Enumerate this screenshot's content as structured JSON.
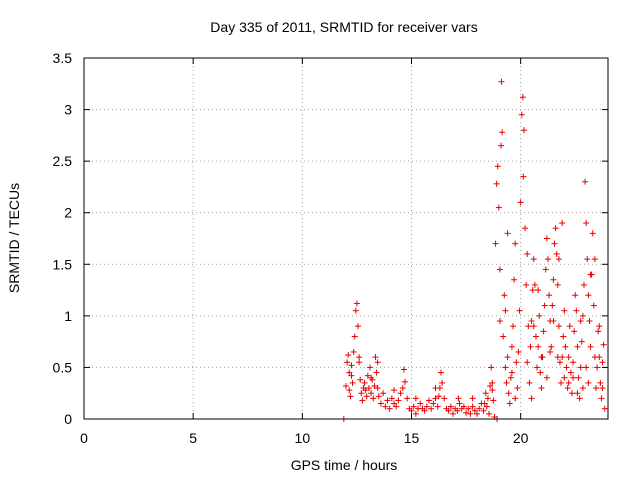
{
  "chart_data": {
    "type": "scatter",
    "title": "Day 335 of 2011, SRMTID for receiver vars",
    "xlabel": "GPS time / hours",
    "ylabel": "SRMTID / TECUs",
    "xlim": [
      0,
      24
    ],
    "ylim": [
      0,
      3.5
    ],
    "x_ticks": [
      "0",
      "5",
      "10",
      "15",
      "20"
    ],
    "y_ticks": [
      "0",
      "0.5",
      "1",
      "1.5",
      "2",
      "2.5",
      "3",
      "3.5"
    ],
    "grid": true,
    "series": [
      {
        "name": "SRMTID",
        "color": "#e80000",
        "marker": "plus",
        "points": [
          [
            11.9,
            0.0
          ],
          [
            12.0,
            0.32
          ],
          [
            12.05,
            0.55
          ],
          [
            12.1,
            0.62
          ],
          [
            12.15,
            0.45
          ],
          [
            12.2,
            0.22
          ],
          [
            12.25,
            0.52
          ],
          [
            12.3,
            0.35
          ],
          [
            12.35,
            0.65
          ],
          [
            12.4,
            0.8
          ],
          [
            12.45,
            1.05
          ],
          [
            12.5,
            1.12
          ],
          [
            12.55,
            0.9
          ],
          [
            12.6,
            0.6
          ],
          [
            12.65,
            0.38
          ],
          [
            12.7,
            0.25
          ],
          [
            12.75,
            0.18
          ],
          [
            12.8,
            0.3
          ],
          [
            12.85,
            0.35
          ],
          [
            12.9,
            0.28
          ],
          [
            12.95,
            0.22
          ],
          [
            13.0,
            0.42
          ],
          [
            13.05,
            0.3
          ],
          [
            13.1,
            0.5
          ],
          [
            13.15,
            0.25
          ],
          [
            13.2,
            0.38
          ],
          [
            13.25,
            0.2
          ],
          [
            13.3,
            0.32
          ],
          [
            13.35,
            0.6
          ],
          [
            13.4,
            0.45
          ],
          [
            13.45,
            0.3
          ],
          [
            13.5,
            0.22
          ],
          [
            13.6,
            0.15
          ],
          [
            13.7,
            0.25
          ],
          [
            13.8,
            0.12
          ],
          [
            13.9,
            0.18
          ],
          [
            14.0,
            0.1
          ],
          [
            14.1,
            0.2
          ],
          [
            14.2,
            0.15
          ],
          [
            14.3,
            0.12
          ],
          [
            14.4,
            0.18
          ],
          [
            14.5,
            0.25
          ],
          [
            14.6,
            0.3
          ],
          [
            14.65,
            0.48
          ],
          [
            14.7,
            0.36
          ],
          [
            14.8,
            0.2
          ],
          [
            14.9,
            0.1
          ],
          [
            15.0,
            0.08
          ],
          [
            15.1,
            0.12
          ],
          [
            15.2,
            0.05
          ],
          [
            15.3,
            0.1
          ],
          [
            15.4,
            0.15
          ],
          [
            15.5,
            0.1
          ],
          [
            15.6,
            0.08
          ],
          [
            15.7,
            0.12
          ],
          [
            15.8,
            0.18
          ],
          [
            15.9,
            0.1
          ],
          [
            16.0,
            0.15
          ],
          [
            16.1,
            0.2
          ],
          [
            16.2,
            0.12
          ],
          [
            16.3,
            0.3
          ],
          [
            16.35,
            0.45
          ],
          [
            16.4,
            0.35
          ],
          [
            16.5,
            0.2
          ],
          [
            16.6,
            0.1
          ],
          [
            16.7,
            0.08
          ],
          [
            16.8,
            0.12
          ],
          [
            16.9,
            0.05
          ],
          [
            17.0,
            0.1
          ],
          [
            17.1,
            0.08
          ],
          [
            17.2,
            0.15
          ],
          [
            17.3,
            0.1
          ],
          [
            17.4,
            0.12
          ],
          [
            17.5,
            0.06
          ],
          [
            17.6,
            0.1
          ],
          [
            17.7,
            0.05
          ],
          [
            17.8,
            0.12
          ],
          [
            17.9,
            0.08
          ],
          [
            18.0,
            0.05
          ],
          [
            18.1,
            0.1
          ],
          [
            18.2,
            0.15
          ],
          [
            18.3,
            0.08
          ],
          [
            18.4,
            0.25
          ],
          [
            18.45,
            0.12
          ],
          [
            18.5,
            0.2
          ],
          [
            18.55,
            0.05
          ],
          [
            18.6,
            0.32
          ],
          [
            18.65,
            0.5
          ],
          [
            18.7,
            0.35
          ],
          [
            18.75,
            0.18
          ],
          [
            18.8,
            0.02
          ],
          [
            18.85,
            1.7
          ],
          [
            18.9,
            2.28
          ],
          [
            18.95,
            2.45
          ],
          [
            19.0,
            2.05
          ],
          [
            19.05,
            1.45
          ],
          [
            19.1,
            2.65
          ],
          [
            19.12,
            3.27
          ],
          [
            19.15,
            2.78
          ],
          [
            19.2,
            0.8
          ],
          [
            19.25,
            1.2
          ],
          [
            19.3,
            0.5
          ],
          [
            19.35,
            0.35
          ],
          [
            19.4,
            0.6
          ],
          [
            19.45,
            0.25
          ],
          [
            19.5,
            0.15
          ],
          [
            19.55,
            0.4
          ],
          [
            19.6,
            0.7
          ],
          [
            19.65,
            0.9
          ],
          [
            19.7,
            1.35
          ],
          [
            19.75,
            1.7
          ],
          [
            19.8,
            0.55
          ],
          [
            19.85,
            0.3
          ],
          [
            19.9,
            0.65
          ],
          [
            19.95,
            1.05
          ],
          [
            20.0,
            2.1
          ],
          [
            20.05,
            2.95
          ],
          [
            20.1,
            3.12
          ],
          [
            20.12,
            2.35
          ],
          [
            20.15,
            2.8
          ],
          [
            20.2,
            1.85
          ],
          [
            20.25,
            1.3
          ],
          [
            20.3,
            0.55
          ],
          [
            20.35,
            0.9
          ],
          [
            20.4,
            0.35
          ],
          [
            20.45,
            0.7
          ],
          [
            20.5,
            0.95
          ],
          [
            20.55,
            1.25
          ],
          [
            20.6,
            1.55
          ],
          [
            20.65,
            1.3
          ],
          [
            20.7,
            0.8
          ],
          [
            20.75,
            0.5
          ],
          [
            20.8,
            0.7
          ],
          [
            20.85,
            1.0
          ],
          [
            20.9,
            0.45
          ],
          [
            20.95,
            0.3
          ],
          [
            21.0,
            0.6
          ],
          [
            21.05,
            0.85
          ],
          [
            21.1,
            1.1
          ],
          [
            21.15,
            1.45
          ],
          [
            21.2,
            1.75
          ],
          [
            21.25,
            1.55
          ],
          [
            21.3,
            1.2
          ],
          [
            21.35,
            0.95
          ],
          [
            21.4,
            0.7
          ],
          [
            21.45,
            1.1
          ],
          [
            21.5,
            1.35
          ],
          [
            21.55,
            1.7
          ],
          [
            21.6,
            1.85
          ],
          [
            21.65,
            1.6
          ],
          [
            21.7,
            1.3
          ],
          [
            21.75,
            0.9
          ],
          [
            21.8,
            0.55
          ],
          [
            21.85,
            0.35
          ],
          [
            21.9,
            0.6
          ],
          [
            21.95,
            0.8
          ],
          [
            22.0,
            1.05
          ],
          [
            22.05,
            0.7
          ],
          [
            22.1,
            0.5
          ],
          [
            22.15,
            0.3
          ],
          [
            22.2,
            0.6
          ],
          [
            22.25,
            0.9
          ],
          [
            22.3,
            0.45
          ],
          [
            22.35,
            0.25
          ],
          [
            22.4,
            0.55
          ],
          [
            22.45,
            0.85
          ],
          [
            22.5,
            1.2
          ],
          [
            22.55,
            1.05
          ],
          [
            22.6,
            0.7
          ],
          [
            22.65,
            0.4
          ],
          [
            22.7,
            0.2
          ],
          [
            22.75,
            0.5
          ],
          [
            22.8,
            0.75
          ],
          [
            22.85,
            1.0
          ],
          [
            22.9,
            1.3
          ],
          [
            22.95,
            2.3
          ],
          [
            23.0,
            1.9
          ],
          [
            23.05,
            1.55
          ],
          [
            23.1,
            1.2
          ],
          [
            23.15,
            0.95
          ],
          [
            23.2,
            0.7
          ],
          [
            23.25,
            1.4
          ],
          [
            23.3,
            1.8
          ],
          [
            23.35,
            1.1
          ],
          [
            23.4,
            0.6
          ],
          [
            23.45,
            0.3
          ],
          [
            23.5,
            0.5
          ],
          [
            23.55,
            0.85
          ],
          [
            23.6,
            0.6
          ],
          [
            23.65,
            0.35
          ],
          [
            23.7,
            0.2
          ],
          [
            23.75,
            0.55
          ],
          [
            23.8,
            0.72
          ],
          [
            23.85,
            0.1
          ],
          [
            18.92,
            0.0
          ],
          [
            12.15,
            0.28
          ],
          [
            12.25,
            0.42
          ],
          [
            12.6,
            0.55
          ],
          [
            13.15,
            0.4
          ],
          [
            13.45,
            0.55
          ],
          [
            14.2,
            0.28
          ],
          [
            15.2,
            0.2
          ],
          [
            16.1,
            0.3
          ],
          [
            16.25,
            0.22
          ],
          [
            17.15,
            0.2
          ],
          [
            17.8,
            0.2
          ],
          [
            18.35,
            0.15
          ],
          [
            18.7,
            0.28
          ],
          [
            19.05,
            0.95
          ],
          [
            19.3,
            1.05
          ],
          [
            19.4,
            1.8
          ],
          [
            19.6,
            0.45
          ],
          [
            19.75,
            0.2
          ],
          [
            20.3,
            1.6
          ],
          [
            20.5,
            0.2
          ],
          [
            20.6,
            0.9
          ],
          [
            20.8,
            1.25
          ],
          [
            20.95,
            0.6
          ],
          [
            21.2,
            0.4
          ],
          [
            21.35,
            0.65
          ],
          [
            21.5,
            0.95
          ],
          [
            21.7,
            0.6
          ],
          [
            21.75,
            1.55
          ],
          [
            21.9,
            1.9
          ],
          [
            22.0,
            0.4
          ],
          [
            22.2,
            0.35
          ],
          [
            22.4,
            0.4
          ],
          [
            22.6,
            0.25
          ],
          [
            22.75,
            0.95
          ],
          [
            22.85,
            0.3
          ],
          [
            23.0,
            0.5
          ],
          [
            23.1,
            0.35
          ],
          [
            23.2,
            1.4
          ],
          [
            23.4,
            1.55
          ],
          [
            23.6,
            0.9
          ],
          [
            23.75,
            0.3
          ]
        ]
      }
    ]
  }
}
